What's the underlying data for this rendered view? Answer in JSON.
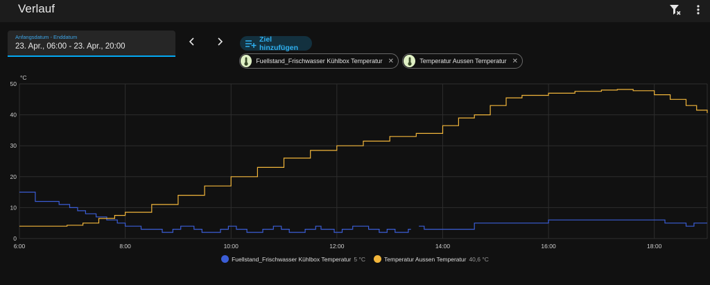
{
  "header": {
    "title": "Verlauf",
    "filter_clear_icon": "filter-remove-icon",
    "menu_icon": "dots-vertical-icon"
  },
  "date_picker": {
    "label": "Anfangsdatum - Enddatum",
    "value": "23. Apr., 06:00 - 23. Apr., 20:00"
  },
  "nav": {
    "prev_icon": "chevron-left-icon",
    "next_icon": "chevron-right-icon"
  },
  "add_target": {
    "label": "Ziel hinzufügen",
    "icon": "playlist-plus-icon"
  },
  "chips": [
    {
      "label": "Fuellstand_Frischwasser Kühlbox Temperatur",
      "icon": "thermometer-icon"
    },
    {
      "label": "Temperatur Aussen Temperatur",
      "icon": "thermometer-icon"
    }
  ],
  "colors": {
    "accent": "#03a9f4",
    "series_water": "#3b5dd6",
    "series_outside": "#f2b63b",
    "background": "#111111"
  },
  "chart_data": {
    "type": "line",
    "unit": "°C",
    "xlim": [
      6.0,
      19.0
    ],
    "ylim": [
      0,
      50
    ],
    "x_ticks": [
      "6:00",
      "8:00",
      "10:00",
      "12:00",
      "14:00",
      "16:00",
      "18:00"
    ],
    "y_ticks": [
      "0",
      "10",
      "20",
      "30",
      "40",
      "50"
    ],
    "grid": true,
    "step": true,
    "series": [
      {
        "name": "Fuellstand_Frischwasser Kühlbox Temperatur",
        "current": "5 °C",
        "color": "#3b5dd6",
        "x": [
          6.0,
          6.3,
          6.75,
          6.95,
          7.1,
          7.25,
          7.45,
          7.65,
          7.85,
          8.0,
          8.3,
          8.7,
          8.9,
          9.05,
          9.3,
          9.45,
          9.8,
          9.95,
          10.1,
          10.3,
          10.6,
          10.8,
          10.95,
          11.1,
          11.4,
          11.6,
          11.7,
          11.95,
          12.1,
          12.3,
          12.6,
          12.8,
          12.95,
          13.1,
          13.35,
          13.4,
          13.5,
          13.55,
          13.65,
          14.0,
          14.6,
          16.0,
          17.5,
          18.2,
          18.6,
          18.75
        ],
        "y": [
          15,
          12,
          11,
          10,
          9,
          8,
          7,
          6,
          5,
          4,
          3,
          2,
          3,
          4,
          3,
          2,
          3,
          4,
          3,
          2,
          3,
          4,
          3,
          2,
          3,
          4,
          3,
          2,
          3,
          4,
          3,
          2,
          3,
          2,
          3,
          null,
          null,
          4,
          3,
          3,
          5,
          6,
          6,
          5,
          4,
          5
        ],
        "end_x": 19.0
      },
      {
        "name": "Temperatur Aussen Temperatur",
        "current": "40,6 °C",
        "color": "#f2b63b",
        "x": [
          6.0,
          6.5,
          6.9,
          7.2,
          7.5,
          7.8,
          8.0,
          8.5,
          9.0,
          9.5,
          10.0,
          10.5,
          11.0,
          11.5,
          12.0,
          12.5,
          13.0,
          13.5,
          14.0,
          14.3,
          14.6,
          14.9,
          15.2,
          15.5,
          16.0,
          16.5,
          17.0,
          17.3,
          17.6,
          18.0,
          18.3,
          18.6,
          18.8,
          19.0
        ],
        "y": [
          4,
          4,
          4.3,
          5,
          6.5,
          7.5,
          8.5,
          11,
          14,
          17,
          20,
          23,
          26,
          28.5,
          30,
          31.5,
          33,
          34,
          36.5,
          39,
          40,
          43,
          45.5,
          46.3,
          47,
          47.6,
          48,
          48.2,
          47.8,
          46.5,
          45,
          43,
          41.5,
          40.6
        ]
      }
    ]
  }
}
